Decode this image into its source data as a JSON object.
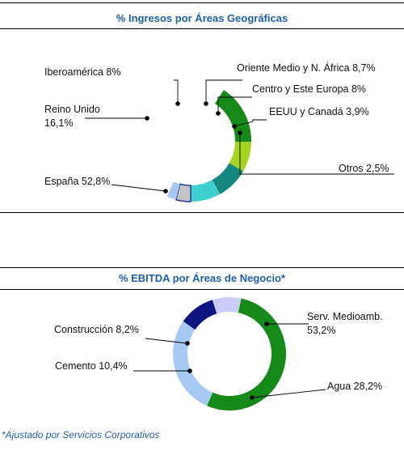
{
  "chart_data": [
    {
      "type": "pie",
      "title": "% Ingresos por Áreas Geográficas",
      "slices": [
        {
          "label": "España",
          "value": 52.8,
          "label_lines": [
            "España 52,8%"
          ],
          "color": "#ffffff"
        },
        {
          "label": "Reino Unido",
          "value": 16.1,
          "label_lines": [
            "Reino Unido",
            "16,1%"
          ],
          "color": "#168a18"
        },
        {
          "label": "Iberoamérica",
          "value": 8.0,
          "label_lines": [
            "Iberoamérica 8%"
          ],
          "color": "#a6d51f"
        },
        {
          "label": "Oriente Medio y N. África",
          "value": 8.7,
          "label_lines": [
            "Oriente Medio y N. África 8,7%"
          ],
          "color": "#138780"
        },
        {
          "label": "Centro y Este Europa",
          "value": 8.0,
          "label_lines": [
            "Centro y Este Europa 8%"
          ],
          "color": "#3ed0cf"
        },
        {
          "label": "EEUU y Canadá",
          "value": 3.9,
          "label_lines": [
            "EEUU y Canadá 3,9%"
          ],
          "color": "#c3c3c3"
        },
        {
          "label": "Otros",
          "value": 2.5,
          "label_lines": [
            "Otros 2,5%"
          ],
          "color": "#a7caf4"
        }
      ],
      "outline_color": "#1b2f8a"
    },
    {
      "type": "pie",
      "title": "% EBITDA por Áreas de Negocio*",
      "slices": [
        {
          "label": "Serv. Medioamb.",
          "value": 53.2,
          "label_lines": [
            "Serv. Medioamb.",
            "53,2%"
          ],
          "color": "#168a18"
        },
        {
          "label": "Agua",
          "value": 28.2,
          "label_lines": [
            "Agua 28,2%"
          ],
          "color": "#a7caf4"
        },
        {
          "label": "Cemento",
          "value": 10.4,
          "label_lines": [
            "Cemento 10,4%"
          ],
          "color": "#0c1580"
        },
        {
          "label": "Construcción",
          "value": 8.2,
          "label_lines": [
            "Construcción 8,2%"
          ],
          "color": "#c9cdf5"
        }
      ]
    }
  ],
  "footnote": "*Ajustado por Servicios Corporativos"
}
